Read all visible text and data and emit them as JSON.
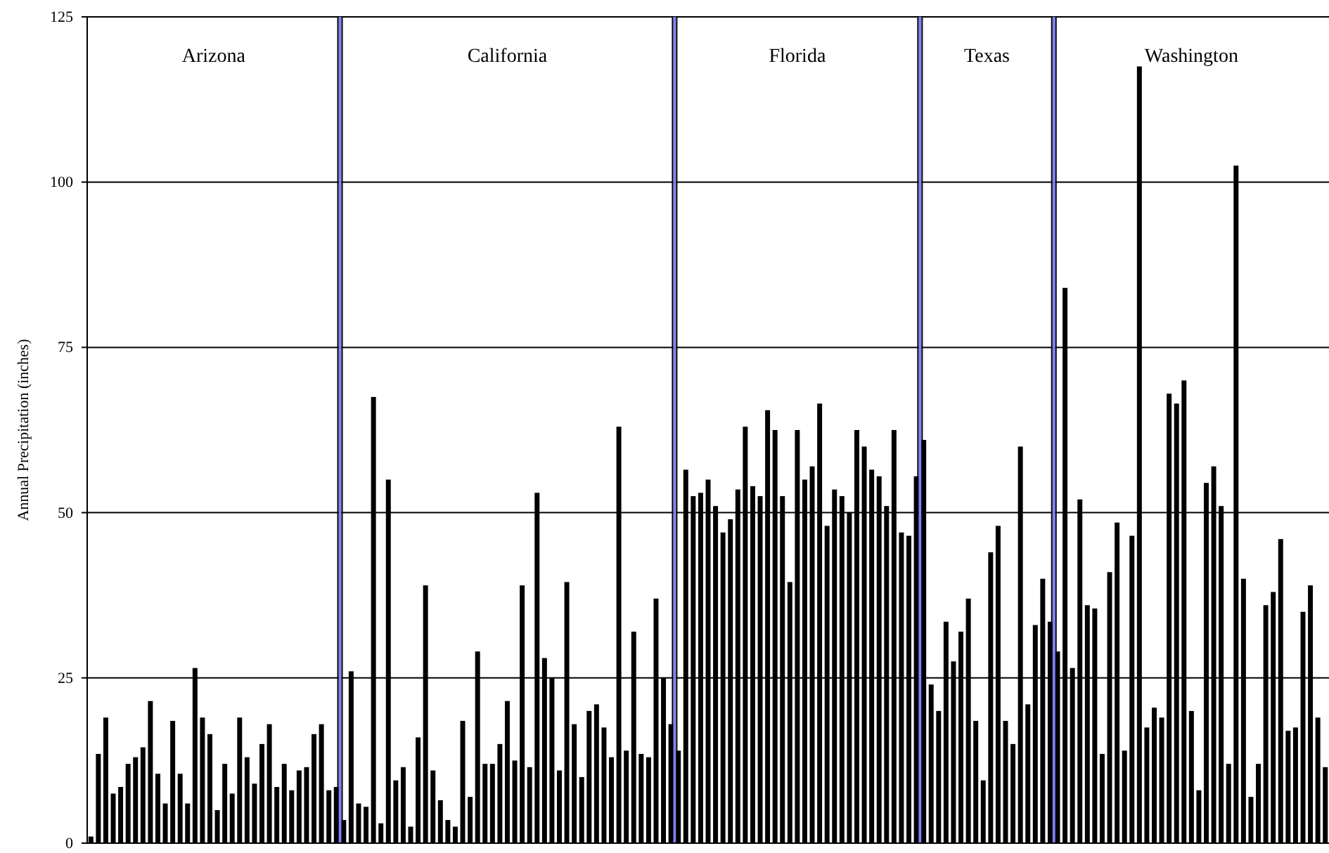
{
  "chart_data": {
    "type": "bar",
    "ylabel": "Annual Precipitation (inches)",
    "annotations": [
      "Arizona",
      "California",
      "Florida",
      "Texas",
      "Washington"
    ],
    "categories": [
      null,
      null,
      null,
      null,
      null,
      null,
      null,
      null,
      null,
      null,
      null,
      null,
      null,
      null,
      null,
      null,
      null,
      null,
      null,
      null,
      null,
      null,
      null,
      null,
      null,
      null,
      null,
      null,
      null,
      null,
      null,
      null,
      null,
      null,
      null,
      null,
      null,
      null,
      null,
      null,
      null,
      null,
      null,
      null,
      null,
      null,
      null,
      null,
      null,
      null,
      null,
      null,
      null,
      null,
      null,
      null,
      null,
      null,
      null,
      null,
      null,
      null,
      null,
      null,
      null,
      null,
      null,
      null,
      null,
      null,
      null,
      null,
      null,
      null,
      null,
      null,
      null,
      null,
      null,
      null,
      null,
      null,
      null,
      null,
      null,
      null,
      null,
      null,
      null,
      null,
      null,
      null,
      null,
      null,
      null,
      null,
      null,
      null,
      null,
      null,
      null,
      null,
      null,
      null,
      null,
      null,
      null,
      null,
      null,
      null,
      null,
      null,
      null,
      null,
      null,
      null,
      null,
      null,
      null,
      null,
      null,
      null,
      null,
      null,
      null,
      null,
      null,
      null,
      null,
      null,
      null,
      null,
      null,
      null,
      null,
      null,
      null,
      null,
      null,
      null,
      null,
      null,
      null,
      null,
      null,
      null,
      null,
      null,
      null,
      null,
      null,
      null,
      null,
      null,
      null,
      null,
      null,
      null,
      null,
      null,
      null,
      null,
      null,
      null,
      null,
      null,
      null
    ],
    "series": [
      {
        "color": "#000000",
        "values": [
          1,
          13.5,
          19,
          7.5,
          8.5,
          12,
          13,
          14.5,
          21.5,
          10.5,
          6,
          18.5,
          10.5,
          6,
          26.5,
          19,
          16.5,
          5,
          12,
          7.5,
          19,
          13,
          9,
          15,
          18,
          8.5,
          12,
          8,
          11,
          11.5,
          16.5,
          18,
          8,
          8.5,
          null,
          null,
          null,
          null,
          null,
          null,
          null,
          null,
          null,
          null,
          null,
          null,
          null,
          null,
          null,
          null,
          null,
          null,
          null,
          null,
          null,
          null,
          null,
          null,
          null,
          null,
          null,
          null,
          null,
          null,
          null,
          null,
          null,
          null,
          null,
          null,
          null,
          null,
          null,
          null,
          null,
          null,
          null,
          null,
          null,
          null,
          null,
          null,
          null,
          null,
          null,
          null,
          null,
          null,
          null,
          null,
          null,
          null,
          null,
          null,
          null,
          null,
          null,
          null,
          null,
          null,
          null,
          null,
          null,
          null,
          null,
          null,
          null,
          null,
          null,
          null,
          null,
          null,
          null,
          null,
          null,
          null,
          null,
          null,
          null,
          null,
          null,
          null,
          null,
          null,
          null,
          null,
          null,
          null,
          null,
          null,
          null,
          null,
          null,
          null,
          null,
          null,
          null,
          null,
          null,
          null,
          null,
          null,
          null,
          null,
          null,
          null,
          null,
          null,
          null,
          null,
          null,
          null,
          null,
          null,
          null,
          null,
          null,
          null,
          null,
          null,
          null,
          null,
          null,
          null,
          null,
          null,
          null
        ]
      },
      {
        "color": "#000000",
        "values": [
          null,
          null,
          null,
          null,
          null,
          null,
          null,
          null,
          null,
          null,
          null,
          null,
          null,
          null,
          null,
          null,
          null,
          null,
          null,
          null,
          null,
          null,
          null,
          null,
          null,
          null,
          null,
          null,
          null,
          null,
          null,
          null,
          null,
          null,
          3.5,
          26,
          6,
          5.5,
          67.5,
          3,
          55,
          9.5,
          11.5,
          2.5,
          16,
          39,
          11,
          6.5,
          3.5,
          2.5,
          18.5,
          7,
          29,
          12,
          12,
          15,
          21.5,
          12.5,
          39,
          11.5,
          53,
          28,
          25,
          11,
          39.5,
          18,
          10,
          20,
          21,
          17.5,
          13,
          63,
          14,
          32,
          13.5,
          13,
          37,
          25,
          18,
          null,
          null,
          null,
          null,
          null,
          null,
          null,
          null,
          null,
          null,
          null,
          null,
          null,
          null,
          null,
          null,
          null,
          null,
          null,
          null,
          null,
          null,
          null,
          null,
          null,
          null,
          null,
          null,
          null,
          null,
          null,
          null,
          null,
          null,
          null,
          null,
          null,
          null,
          null,
          null,
          null,
          null,
          null,
          null,
          null,
          null,
          null,
          null,
          null,
          null,
          null,
          null,
          null,
          null,
          null,
          null,
          null,
          null,
          null,
          null,
          null,
          null,
          null,
          null,
          null,
          null,
          null,
          null,
          null,
          null,
          null,
          null,
          null,
          null,
          null,
          null,
          null,
          null,
          null,
          null,
          null,
          null,
          null,
          null,
          null,
          null,
          null,
          null
        ]
      },
      {
        "color": "#000000",
        "values": [
          null,
          null,
          null,
          null,
          null,
          null,
          null,
          null,
          null,
          null,
          null,
          null,
          null,
          null,
          null,
          null,
          null,
          null,
          null,
          null,
          null,
          null,
          null,
          null,
          null,
          null,
          null,
          null,
          null,
          null,
          null,
          null,
          null,
          null,
          null,
          null,
          null,
          null,
          null,
          null,
          null,
          null,
          null,
          null,
          null,
          null,
          null,
          null,
          null,
          null,
          null,
          null,
          null,
          null,
          null,
          null,
          null,
          null,
          null,
          null,
          null,
          null,
          null,
          null,
          null,
          null,
          null,
          null,
          null,
          null,
          null,
          null,
          null,
          null,
          null,
          null,
          null,
          null,
          null,
          14,
          56.5,
          52.5,
          53,
          55,
          51,
          47,
          49,
          53.5,
          63,
          54,
          52.5,
          65.5,
          62.5,
          52.5,
          39.5,
          62.5,
          55,
          57,
          66.5,
          48,
          53.5,
          52.5,
          50,
          62.5,
          60,
          56.5,
          55.5,
          51,
          62.5,
          47,
          46.5,
          55.5,
          null,
          null,
          null,
          null,
          null,
          null,
          null,
          null,
          null,
          null,
          null,
          null,
          null,
          null,
          null,
          null,
          null,
          null,
          null,
          null,
          null,
          null,
          null,
          null,
          null,
          null,
          null,
          null,
          null,
          null,
          null,
          null,
          null,
          null,
          null,
          null,
          null,
          null,
          null,
          null,
          null,
          null,
          null,
          null,
          null,
          null,
          null,
          null,
          null,
          null,
          null,
          null,
          null,
          null,
          null
        ]
      },
      {
        "color": "#000000",
        "values": [
          null,
          null,
          null,
          null,
          null,
          null,
          null,
          null,
          null,
          null,
          null,
          null,
          null,
          null,
          null,
          null,
          null,
          null,
          null,
          null,
          null,
          null,
          null,
          null,
          null,
          null,
          null,
          null,
          null,
          null,
          null,
          null,
          null,
          null,
          null,
          null,
          null,
          null,
          null,
          null,
          null,
          null,
          null,
          null,
          null,
          null,
          null,
          null,
          null,
          null,
          null,
          null,
          null,
          null,
          null,
          null,
          null,
          null,
          null,
          null,
          null,
          null,
          null,
          null,
          null,
          null,
          null,
          null,
          null,
          null,
          null,
          null,
          null,
          null,
          null,
          null,
          null,
          null,
          null,
          null,
          null,
          null,
          null,
          null,
          null,
          null,
          null,
          null,
          null,
          null,
          null,
          null,
          null,
          null,
          null,
          null,
          null,
          null,
          null,
          null,
          null,
          null,
          null,
          null,
          null,
          null,
          null,
          null,
          null,
          null,
          null,
          null,
          61,
          24,
          20,
          33.5,
          27.5,
          32,
          37,
          18.5,
          9.5,
          44,
          48,
          18.5,
          15,
          60,
          21,
          33,
          40,
          33.5,
          null,
          null,
          null,
          null,
          null,
          null,
          null,
          null,
          null,
          null,
          null,
          null,
          null,
          null,
          null,
          null,
          null,
          null,
          null,
          null,
          null,
          null,
          null,
          null,
          null,
          null,
          null,
          null,
          null,
          null,
          null,
          null,
          null,
          null,
          null,
          null,
          null
        ]
      },
      {
        "color": "#000000",
        "values": [
          null,
          null,
          null,
          null,
          null,
          null,
          null,
          null,
          null,
          null,
          null,
          null,
          null,
          null,
          null,
          null,
          null,
          null,
          null,
          null,
          null,
          null,
          null,
          null,
          null,
          null,
          null,
          null,
          null,
          null,
          null,
          null,
          null,
          null,
          null,
          null,
          null,
          null,
          null,
          null,
          null,
          null,
          null,
          null,
          null,
          null,
          null,
          null,
          null,
          null,
          null,
          null,
          null,
          null,
          null,
          null,
          null,
          null,
          null,
          null,
          null,
          null,
          null,
          null,
          null,
          null,
          null,
          null,
          null,
          null,
          null,
          null,
          null,
          null,
          null,
          null,
          null,
          null,
          null,
          null,
          null,
          null,
          null,
          null,
          null,
          null,
          null,
          null,
          null,
          null,
          null,
          null,
          null,
          null,
          null,
          null,
          null,
          null,
          null,
          null,
          null,
          null,
          null,
          null,
          null,
          null,
          null,
          null,
          null,
          null,
          null,
          null,
          null,
          null,
          null,
          null,
          null,
          null,
          null,
          null,
          null,
          null,
          null,
          null,
          null,
          null,
          null,
          null,
          null,
          null,
          29,
          84,
          26.5,
          52,
          36,
          35.5,
          13.5,
          41,
          48.5,
          14,
          46.5,
          117.5,
          17.5,
          20.5,
          19,
          68,
          66.5,
          70,
          20,
          8,
          54.5,
          57,
          51,
          12,
          102.5,
          40,
          7,
          12,
          36,
          38,
          46,
          17,
          17.5,
          35,
          39,
          19,
          11.5
        ]
      }
    ],
    "ylim": [
      0,
      125
    ],
    "yticks": [
      0,
      25,
      50,
      75,
      100,
      125
    ],
    "grid": "y"
  }
}
